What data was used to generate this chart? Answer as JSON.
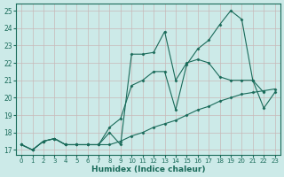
{
  "xlabel": "Humidex (Indice chaleur)",
  "bg_color": "#cceae8",
  "grid_color": "#c8b8b8",
  "line_color": "#1a6b5a",
  "xlim": [
    -0.5,
    23.5
  ],
  "ylim": [
    16.7,
    25.4
  ],
  "yticks": [
    17,
    18,
    19,
    20,
    21,
    22,
    23,
    24,
    25
  ],
  "xticks": [
    0,
    1,
    2,
    3,
    4,
    5,
    6,
    7,
    8,
    9,
    10,
    11,
    12,
    13,
    14,
    15,
    16,
    17,
    18,
    19,
    20,
    21,
    22,
    23
  ],
  "line1_x": [
    0,
    1,
    2,
    3,
    4,
    5,
    6,
    7,
    8,
    9,
    10,
    11,
    12,
    13,
    14,
    15,
    16,
    17,
    18,
    19,
    20,
    21,
    22
  ],
  "line1_y": [
    17.3,
    17.0,
    17.5,
    17.65,
    17.3,
    17.3,
    17.3,
    17.3,
    18.0,
    17.3,
    22.5,
    22.5,
    22.6,
    23.8,
    21.0,
    22.0,
    22.2,
    22.0,
    21.2,
    21.0,
    21.0,
    21.0,
    20.3
  ],
  "line2_x": [
    0,
    1,
    2,
    3,
    4,
    5,
    6,
    7,
    8,
    9,
    10,
    11,
    12,
    13,
    14,
    15,
    16,
    17,
    18,
    19,
    20,
    21,
    22,
    23
  ],
  "line2_y": [
    17.3,
    17.0,
    17.5,
    17.65,
    17.3,
    17.3,
    17.3,
    17.3,
    18.3,
    18.8,
    20.7,
    21.0,
    21.5,
    21.5,
    19.3,
    21.9,
    22.8,
    23.3,
    24.2,
    25.0,
    24.5,
    21.0,
    19.4,
    20.3
  ],
  "line3_x": [
    0,
    1,
    2,
    3,
    4,
    5,
    6,
    7,
    8,
    9,
    10,
    11,
    12,
    13,
    14,
    15,
    16,
    17,
    18,
    19,
    20,
    21,
    22,
    23
  ],
  "line3_y": [
    17.3,
    17.0,
    17.5,
    17.65,
    17.3,
    17.3,
    17.3,
    17.3,
    17.3,
    17.5,
    17.8,
    18.0,
    18.3,
    18.5,
    18.7,
    19.0,
    19.3,
    19.5,
    19.8,
    20.0,
    20.2,
    20.3,
    20.4,
    20.5
  ]
}
